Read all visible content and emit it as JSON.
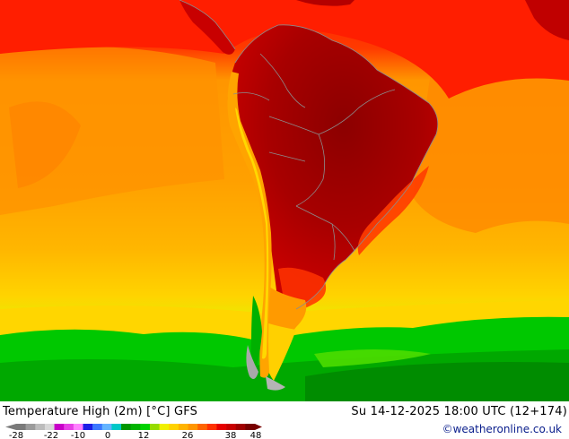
{
  "map": {
    "title": "Temperature High (2m) [°C] GFS",
    "valid_time": "Su 14-12-2025 18:00 UTC (12+174)",
    "credit": "©weatheronline.co.uk",
    "legend": {
      "ticks": [
        "-28",
        "-22",
        "-10",
        "0",
        "12",
        "26",
        "38",
        "48"
      ],
      "colors": [
        "#7a7a7a",
        "#9b9b9b",
        "#bcbcbc",
        "#d8d8d8",
        "#c800c8",
        "#e640e6",
        "#ff80ff",
        "#1e1ee6",
        "#3c78ff",
        "#64b4ff",
        "#00c8c8",
        "#009600",
        "#00b400",
        "#00d200",
        "#96dc00",
        "#f0f000",
        "#ffd200",
        "#ffb400",
        "#ff9600",
        "#ff6400",
        "#ff3200",
        "#e60000",
        "#c80000",
        "#a00000",
        "#780000"
      ]
    },
    "colors": {
      "ocean_warm": "#ff9a00",
      "ocean_mid": "#ffb400",
      "ocean_cool": "#ffd000",
      "tropics": "#ff2a00",
      "continent_hot": "#b40000",
      "continent_very_hot": "#8c0000",
      "southern_green": "#00c800",
      "deep_green": "#009000",
      "andes_gray": "#a0a0a0",
      "borders": "#8c8c8c"
    }
  }
}
